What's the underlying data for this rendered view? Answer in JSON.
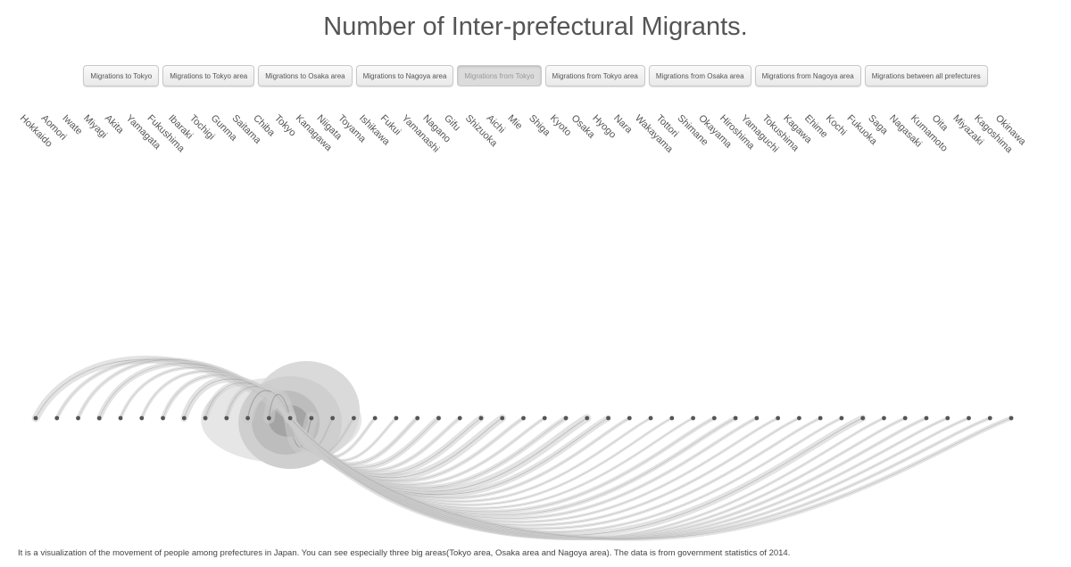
{
  "title": "Number of Inter-prefectural Migrants.",
  "buttons": [
    {
      "label": "Migrations to Tokyo",
      "active": false
    },
    {
      "label": "Migrations to Tokyo area",
      "active": false
    },
    {
      "label": "Migrations to Osaka area",
      "active": false
    },
    {
      "label": "Migrations to Nagoya area",
      "active": false
    },
    {
      "label": "Migrations from Tokyo",
      "active": true
    },
    {
      "label": "Migrations from Tokyo area",
      "active": false
    },
    {
      "label": "Migrations from Osaka area",
      "active": false
    },
    {
      "label": "Migrations from Nagoya area",
      "active": false
    },
    {
      "label": "Migrations between all prefectures",
      "active": false
    }
  ],
  "footer": "It is a visualization of the movement of people among prefectures in Japan. You can see especially three big areas(Tokyo area, Osaka area and Nagoya area). The data is from government statistics of 2014.",
  "chart_data": {
    "type": "arc",
    "prefectures": [
      "Hokkaido",
      "Aomori",
      "Iwate",
      "Miyagi",
      "Akita",
      "Yamagata",
      "Fukushima",
      "Ibaraki",
      "Tochigi",
      "Gunma",
      "Saitama",
      "Chiba",
      "Tokyo",
      "Kanagawa",
      "Niigata",
      "Toyama",
      "Ishikawa",
      "Fukui",
      "Yamanashi",
      "Nagano",
      "Gifu",
      "Shizuoka",
      "Aichi",
      "Mie",
      "Shiga",
      "Kyoto",
      "Osaka",
      "Hyogo",
      "Nara",
      "Wakayama",
      "Tottori",
      "Shimane",
      "Okayama",
      "Hiroshima",
      "Yamaguchi",
      "Tokushima",
      "Kagawa",
      "Ehime",
      "Kochi",
      "Fukuoka",
      "Saga",
      "Nagasaki",
      "Kumamoto",
      "Oita",
      "Miyazaki",
      "Kagoshima",
      "Okinawa"
    ],
    "source": "Tokyo",
    "relative_flow": [
      0.55,
      0.2,
      0.2,
      0.35,
      0.15,
      0.15,
      0.25,
      0.5,
      0.35,
      0.3,
      1.0,
      0.9,
      0,
      1.0,
      0.3,
      0.15,
      0.15,
      0.12,
      0.25,
      0.35,
      0.2,
      0.45,
      0.55,
      0.2,
      0.15,
      0.3,
      0.6,
      0.4,
      0.15,
      0.1,
      0.08,
      0.08,
      0.2,
      0.25,
      0.15,
      0.1,
      0.12,
      0.12,
      0.1,
      0.45,
      0.1,
      0.12,
      0.15,
      0.12,
      0.12,
      0.15,
      0.25
    ],
    "colors": {
      "flow": "#cccccc",
      "node": "#555555",
      "core": "#333333"
    }
  }
}
